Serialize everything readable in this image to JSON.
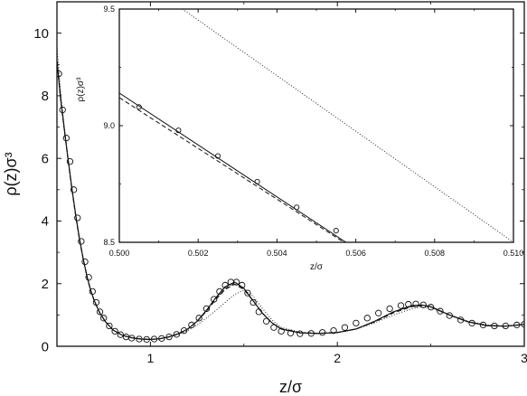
{
  "chart_data": [
    {
      "type": "scatter",
      "role": "main",
      "xlabel": "z/σ",
      "ylabel": "ρ(z)σ³",
      "xlim": [
        0.5,
        3.0
      ],
      "ylim": [
        0,
        11
      ],
      "x_ticks": [
        1,
        2,
        3
      ],
      "x_tick_labels": [
        "1",
        "2",
        "3"
      ],
      "y_ticks": [
        0,
        2,
        4,
        6,
        8,
        10
      ],
      "y_tick_labels": [
        "0",
        "2",
        "4",
        "6",
        "8",
        "10"
      ],
      "grid": false,
      "legend": "none",
      "series": [
        {
          "style": "open-circle markers",
          "x": [
            0.51,
            0.53,
            0.55,
            0.57,
            0.59,
            0.61,
            0.63,
            0.65,
            0.67,
            0.69,
            0.71,
            0.73,
            0.75,
            0.78,
            0.81,
            0.84,
            0.87,
            0.9,
            0.94,
            0.98,
            1.02,
            1.06,
            1.1,
            1.14,
            1.18,
            1.22,
            1.26,
            1.3,
            1.34,
            1.37,
            1.4,
            1.43,
            1.46,
            1.49,
            1.52,
            1.55,
            1.58,
            1.62,
            1.66,
            1.7,
            1.75,
            1.8,
            1.86,
            1.92,
            1.98,
            2.04,
            2.1,
            2.16,
            2.22,
            2.28,
            2.34,
            2.38,
            2.42,
            2.46,
            2.5,
            2.55,
            2.6,
            2.66,
            2.72,
            2.78,
            2.84,
            2.9,
            2.96,
            3.0
          ],
          "y": [
            8.7,
            7.55,
            6.65,
            5.9,
            5.0,
            4.1,
            3.35,
            2.7,
            2.2,
            1.75,
            1.4,
            1.1,
            0.9,
            0.65,
            0.48,
            0.37,
            0.3,
            0.26,
            0.23,
            0.22,
            0.23,
            0.25,
            0.3,
            0.38,
            0.5,
            0.68,
            0.9,
            1.2,
            1.5,
            1.75,
            1.95,
            2.05,
            2.05,
            1.95,
            1.7,
            1.4,
            1.1,
            0.8,
            0.6,
            0.48,
            0.42,
            0.4,
            0.41,
            0.44,
            0.5,
            0.6,
            0.74,
            0.9,
            1.06,
            1.2,
            1.3,
            1.34,
            1.35,
            1.32,
            1.25,
            1.12,
            0.98,
            0.84,
            0.74,
            0.68,
            0.65,
            0.65,
            0.68,
            0.7
          ]
        },
        {
          "style": "solid line",
          "x": [
            0.5,
            0.52,
            0.54,
            0.56,
            0.58,
            0.6,
            0.62,
            0.64,
            0.66,
            0.68,
            0.7,
            0.73,
            0.76,
            0.8,
            0.85,
            0.9,
            0.95,
            1.0,
            1.05,
            1.1,
            1.15,
            1.2,
            1.25,
            1.3,
            1.35,
            1.4,
            1.45,
            1.5,
            1.55,
            1.6,
            1.65,
            1.7,
            1.8,
            1.9,
            2.0,
            2.1,
            2.2,
            2.3,
            2.4,
            2.45,
            2.5,
            2.6,
            2.7,
            2.8,
            2.9,
            3.0
          ],
          "y": [
            9.12,
            7.9,
            6.9,
            5.95,
            5.05,
            4.2,
            3.45,
            2.8,
            2.25,
            1.8,
            1.45,
            1.05,
            0.78,
            0.52,
            0.35,
            0.27,
            0.23,
            0.22,
            0.24,
            0.3,
            0.4,
            0.55,
            0.8,
            1.15,
            1.55,
            1.9,
            2.05,
            1.85,
            1.45,
            1.05,
            0.75,
            0.55,
            0.43,
            0.41,
            0.44,
            0.55,
            0.8,
            1.1,
            1.3,
            1.32,
            1.27,
            1.0,
            0.78,
            0.66,
            0.64,
            0.7
          ]
        },
        {
          "style": "dashed line",
          "x": [
            0.5,
            0.52,
            0.54,
            0.56,
            0.58,
            0.6,
            0.62,
            0.64,
            0.66,
            0.68,
            0.7,
            0.73,
            0.76,
            0.8,
            0.85,
            0.9,
            0.95,
            1.0,
            1.05,
            1.1,
            1.15,
            1.2,
            1.25,
            1.3,
            1.35,
            1.4,
            1.45,
            1.5,
            1.55,
            1.6,
            1.65,
            1.7,
            1.8,
            1.9,
            2.0,
            2.1,
            2.2,
            2.3,
            2.4,
            2.45,
            2.5,
            2.6,
            2.7,
            2.8,
            2.9,
            3.0
          ],
          "y": [
            9.11,
            7.88,
            6.88,
            5.93,
            5.03,
            4.18,
            3.43,
            2.79,
            2.24,
            1.79,
            1.44,
            1.05,
            0.78,
            0.52,
            0.35,
            0.27,
            0.23,
            0.22,
            0.24,
            0.3,
            0.4,
            0.55,
            0.8,
            1.12,
            1.5,
            1.82,
            1.98,
            1.82,
            1.45,
            1.05,
            0.75,
            0.55,
            0.43,
            0.41,
            0.44,
            0.55,
            0.78,
            1.07,
            1.27,
            1.3,
            1.26,
            1.0,
            0.78,
            0.66,
            0.64,
            0.7
          ]
        },
        {
          "style": "dotted line",
          "x": [
            0.5,
            0.52,
            0.54,
            0.56,
            0.58,
            0.6,
            0.62,
            0.64,
            0.66,
            0.68,
            0.7,
            0.73,
            0.76,
            0.8,
            0.85,
            0.9,
            0.95,
            1.0,
            1.05,
            1.1,
            1.15,
            1.2,
            1.25,
            1.3,
            1.35,
            1.4,
            1.45,
            1.5,
            1.55,
            1.6,
            1.65,
            1.7,
            1.8,
            1.9,
            2.0,
            2.1,
            2.2,
            2.3,
            2.4,
            2.45,
            2.5,
            2.6,
            2.7,
            2.8,
            2.9,
            3.0
          ],
          "y": [
            9.6,
            8.1,
            6.95,
            5.95,
            5.05,
            4.2,
            3.45,
            2.8,
            2.25,
            1.8,
            1.45,
            1.05,
            0.78,
            0.52,
            0.35,
            0.27,
            0.23,
            0.22,
            0.24,
            0.3,
            0.38,
            0.5,
            0.68,
            0.9,
            1.15,
            1.4,
            1.65,
            1.8,
            1.6,
            1.2,
            0.85,
            0.6,
            0.45,
            0.42,
            0.45,
            0.55,
            0.75,
            1.0,
            1.2,
            1.25,
            1.22,
            1.0,
            0.8,
            0.68,
            0.65,
            0.7
          ]
        }
      ]
    },
    {
      "type": "scatter",
      "role": "inset",
      "xlabel": "z/σ",
      "ylabel": "ρ(z)σ³",
      "xlim": [
        0.5,
        0.51
      ],
      "ylim": [
        8.5,
        9.5
      ],
      "x_ticks": [
        0.5,
        0.502,
        0.504,
        0.506,
        0.508,
        0.51
      ],
      "x_tick_labels": [
        "0.500",
        "0.502",
        "0.504",
        "0.506",
        "0.508",
        "0.510"
      ],
      "y_ticks": [
        8.5,
        9.0,
        9.5
      ],
      "y_tick_labels": [
        "8.5",
        "9.0",
        "9.5"
      ],
      "grid": false,
      "legend": "none",
      "series": [
        {
          "style": "open-circle markers",
          "x": [
            0.5005,
            0.5015,
            0.5025,
            0.5035,
            0.5045,
            0.5055
          ],
          "y": [
            9.08,
            8.98,
            8.87,
            8.76,
            8.65,
            8.55
          ]
        },
        {
          "style": "solid line",
          "x": [
            0.5,
            0.50575
          ],
          "y": [
            9.14,
            8.5
          ]
        },
        {
          "style": "dashed line",
          "x": [
            0.5,
            0.5057
          ],
          "y": [
            9.12,
            8.5
          ]
        },
        {
          "style": "dotted line",
          "x": [
            0.5016,
            0.51
          ],
          "y": [
            9.5,
            8.5
          ]
        }
      ]
    }
  ]
}
